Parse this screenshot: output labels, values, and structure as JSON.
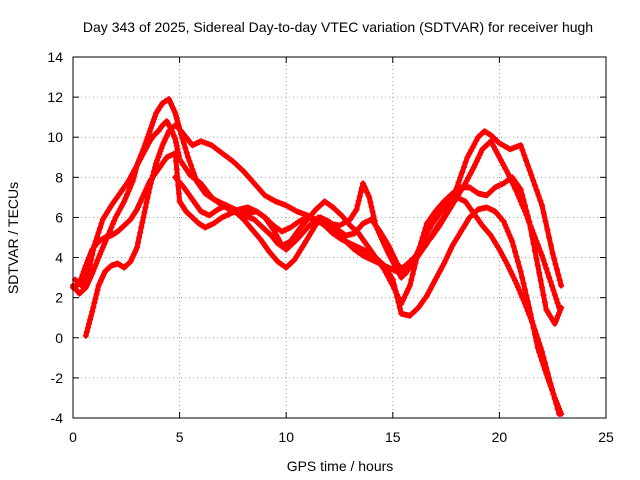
{
  "chart_data": {
    "type": "scatter",
    "title": "Day 343 of 2025, Sidereal Day-to-day VTEC variation (SDTVAR) for receiver hugh",
    "xlabel": "GPS time / hours",
    "ylabel": "SDTVAR / TECUs",
    "xlim": [
      0,
      25
    ],
    "ylim": [
      -4,
      14
    ],
    "xticks": [
      0,
      5,
      10,
      15,
      20,
      25
    ],
    "yticks": [
      -4,
      -2,
      0,
      2,
      4,
      6,
      8,
      10,
      12,
      14
    ],
    "grid": true,
    "marker": "plus",
    "color": "#ff0000",
    "series": [
      {
        "x": [
          0.0,
          0.3,
          0.6,
          0.9,
          1.2,
          1.6,
          2.0,
          2.4,
          2.8,
          3.0,
          3.3,
          3.6,
          3.8,
          4.0,
          4.2,
          4.4,
          4.6,
          4.8,
          5.0,
          5.5,
          6.0,
          6.5,
          7.0,
          7.5,
          8.0,
          8.5,
          9.0,
          9.3,
          9.6,
          10.0
        ],
        "y": [
          2.6,
          2.2,
          2.5,
          3.2,
          4.0,
          5.0,
          6.0,
          6.8,
          7.8,
          8.6,
          9.2,
          9.8,
          10.1,
          10.3,
          10.6,
          10.8,
          10.4,
          9.9,
          8.9,
          8.1,
          7.7,
          7.0,
          6.6,
          6.3,
          6.1,
          5.9,
          5.4,
          5.1,
          4.7,
          4.4
        ]
      },
      {
        "x": [
          10.0,
          10.5,
          11.0,
          11.5,
          12.0,
          12.5,
          13.0,
          13.3,
          13.6,
          13.9,
          14.2,
          14.5,
          14.8,
          15.1,
          15.4,
          15.8,
          16.2,
          16.6,
          17.0,
          17.5,
          18.0,
          18.5,
          19.0,
          19.3,
          19.6,
          20.0,
          20.5,
          21.0,
          21.5,
          22.0,
          22.5,
          22.9
        ],
        "y": [
          4.4,
          4.9,
          5.5,
          6.0,
          5.7,
          5.6,
          5.9,
          6.4,
          7.7,
          7.0,
          5.6,
          4.9,
          4.2,
          3.6,
          3.0,
          3.5,
          4.1,
          4.7,
          5.4,
          6.2,
          7.5,
          9.0,
          10.0,
          10.3,
          10.1,
          9.7,
          9.4,
          9.6,
          8.1,
          6.6,
          4.2,
          2.6
        ]
      },
      {
        "x": [
          0.6,
          0.9,
          1.2,
          1.5,
          1.8,
          2.1,
          2.4,
          2.7,
          3.0,
          3.3,
          3.6,
          3.9,
          4.2,
          4.5,
          4.8,
          5.0,
          5.3,
          5.6,
          6.0,
          6.5,
          7.0,
          7.5,
          8.0,
          8.5,
          9.0,
          9.5,
          10.0,
          10.5,
          11.0,
          11.5,
          12.0
        ],
        "y": [
          0.1,
          1.3,
          2.6,
          3.3,
          3.6,
          3.7,
          3.5,
          3.8,
          4.5,
          6.0,
          7.5,
          8.7,
          9.6,
          10.3,
          10.6,
          10.4,
          10.0,
          9.6,
          9.8,
          9.6,
          9.2,
          8.8,
          8.3,
          7.7,
          7.1,
          6.8,
          6.6,
          6.3,
          6.1,
          5.8,
          5.5
        ]
      },
      {
        "x": [
          12.0,
          12.4,
          12.8,
          13.2,
          13.6,
          14.0,
          14.4,
          14.8,
          15.2,
          15.6,
          16.0,
          16.4,
          16.8,
          17.2,
          17.6,
          18.0,
          18.4,
          18.8,
          19.2,
          19.6,
          20.0,
          20.4,
          20.8,
          21.2,
          21.6,
          22.0,
          22.4,
          22.8
        ],
        "y": [
          5.5,
          5.2,
          4.8,
          4.4,
          4.1,
          3.9,
          3.7,
          3.5,
          3.3,
          3.6,
          4.0,
          4.5,
          5.0,
          5.6,
          6.3,
          7.0,
          7.7,
          8.5,
          9.4,
          9.8,
          9.0,
          8.2,
          7.3,
          6.3,
          5.2,
          4.1,
          2.8,
          1.5
        ]
      },
      {
        "x": [
          0.1,
          0.4,
          0.7,
          1.0,
          1.4,
          1.8,
          2.2,
          2.6,
          3.0,
          3.3,
          3.6,
          3.9,
          4.2,
          4.5,
          4.8,
          5.0,
          5.4,
          5.8,
          6.2,
          6.6,
          7.0,
          7.4,
          7.8,
          8.2,
          8.6,
          9.0,
          9.4,
          9.8
        ],
        "y": [
          2.9,
          2.6,
          3.2,
          4.6,
          5.9,
          6.6,
          7.2,
          7.8,
          8.6,
          9.4,
          10.3,
          11.2,
          11.7,
          11.9,
          11.2,
          10.4,
          9.0,
          7.8,
          7.2,
          6.9,
          6.7,
          6.5,
          6.3,
          6.2,
          6.3,
          6.0,
          5.4,
          4.6
        ]
      },
      {
        "x": [
          9.8,
          10.2,
          10.6,
          11.0,
          11.4,
          11.8,
          12.2,
          12.6,
          13.0,
          13.4,
          13.8,
          14.2,
          14.6,
          15.0,
          15.4,
          15.8,
          16.2,
          16.6,
          17.0,
          17.4,
          17.8,
          18.2,
          18.6,
          19.0,
          19.4,
          19.8,
          20.2,
          20.6,
          21.0,
          21.4,
          21.8,
          22.2,
          22.6,
          22.9
        ],
        "y": [
          4.6,
          4.8,
          5.4,
          5.9,
          6.4,
          6.8,
          6.5,
          6.1,
          5.6,
          5.2,
          4.6,
          4.0,
          3.4,
          2.6,
          1.7,
          2.6,
          4.3,
          5.7,
          6.3,
          6.8,
          7.2,
          7.5,
          7.5,
          7.2,
          7.1,
          7.5,
          7.7,
          8.0,
          7.4,
          5.8,
          3.6,
          1.4,
          0.7,
          1.5
        ]
      },
      {
        "x": [
          0.0,
          0.3,
          0.6,
          0.9,
          1.2,
          1.5,
          1.8,
          2.1,
          2.4,
          2.7,
          3.0,
          3.3,
          3.6,
          4.0,
          4.4,
          4.8,
          5.0,
          5.3,
          5.6,
          5.9,
          6.2,
          6.6,
          7.0,
          7.4,
          7.8,
          8.2,
          8.6,
          9.0,
          9.4,
          9.8,
          10.2,
          10.6,
          11.0,
          11.4,
          11.8,
          12.2
        ],
        "y": [
          2.5,
          2.7,
          3.6,
          4.4,
          4.8,
          5.0,
          5.1,
          5.3,
          5.6,
          5.9,
          6.4,
          7.1,
          7.8,
          8.4,
          9.0,
          9.2,
          6.8,
          6.3,
          6.0,
          5.7,
          5.5,
          5.7,
          6.0,
          6.2,
          6.4,
          6.5,
          6.3,
          6.0,
          5.6,
          5.3,
          5.5,
          5.8,
          6.0,
          5.9,
          5.6,
          5.2
        ]
      },
      {
        "x": [
          12.2,
          12.6,
          13.0,
          13.4,
          13.8,
          14.2,
          14.6,
          15.0,
          15.4,
          15.8,
          16.2,
          16.6,
          17.0,
          17.4,
          17.8,
          18.2,
          18.6,
          19.0,
          19.4,
          19.8,
          20.2,
          20.6,
          21.0,
          21.4,
          21.8,
          22.2,
          22.6,
          22.9
        ],
        "y": [
          5.2,
          4.9,
          4.7,
          4.5,
          4.3,
          4.0,
          3.6,
          2.9,
          1.2,
          1.1,
          1.5,
          2.1,
          2.9,
          3.7,
          4.6,
          5.3,
          6.0,
          6.4,
          6.5,
          6.3,
          5.8,
          4.8,
          3.3,
          1.5,
          -0.5,
          -1.8,
          -3.0,
          -3.8
        ]
      },
      {
        "x": [
          4.8,
          5.2,
          5.6,
          6.0,
          6.4,
          6.8,
          7.2,
          7.6,
          8.0,
          8.4,
          8.8,
          9.2,
          9.6,
          10.0,
          10.4,
          10.8,
          11.2,
          11.6,
          12.0,
          12.4,
          12.8,
          13.2,
          13.6,
          14.0,
          14.4,
          14.8,
          15.2,
          15.6,
          16.0,
          16.4,
          16.8,
          17.2,
          17.6,
          18.0,
          18.4
        ],
        "y": [
          8.0,
          7.5,
          6.9,
          6.3,
          6.1,
          6.4,
          6.6,
          6.3,
          5.9,
          5.4,
          4.9,
          4.3,
          3.8,
          3.5,
          3.9,
          4.6,
          5.3,
          6.0,
          5.8,
          5.4,
          5.1,
          5.2,
          5.7,
          5.9,
          5.3,
          4.6,
          3.7,
          3.2,
          3.9,
          4.8,
          5.6,
          6.2,
          6.7,
          7.0,
          6.8
        ]
      },
      {
        "x": [
          18.4,
          18.8,
          19.2,
          19.6,
          20.0,
          20.4,
          20.8,
          21.2,
          21.6,
          22.0,
          22.4,
          22.8
        ],
        "y": [
          6.8,
          6.2,
          5.6,
          5.1,
          4.4,
          3.6,
          2.7,
          1.7,
          0.6,
          -0.7,
          -2.3,
          -3.8
        ]
      }
    ]
  }
}
